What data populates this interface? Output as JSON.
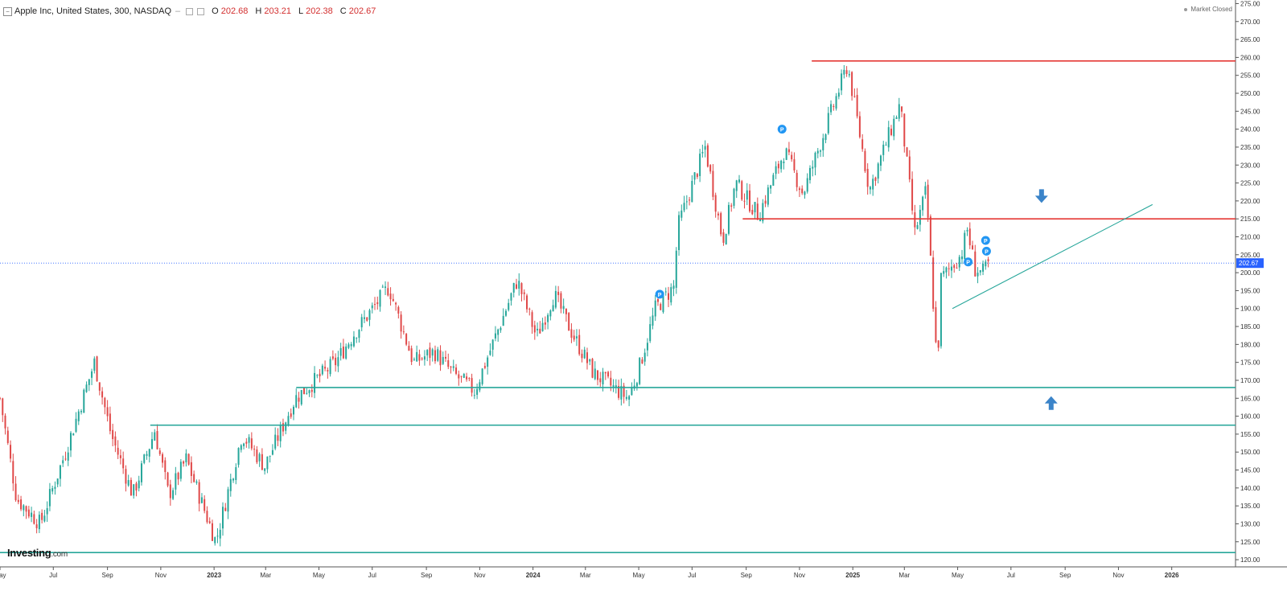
{
  "header": {
    "symbol": "Apple Inc, United States, 300, NASDAQ",
    "o_label": "O",
    "o_value": "202.68",
    "h_label": "H",
    "h_value": "203.21",
    "l_label": "L",
    "l_value": "202.38",
    "c_label": "C",
    "c_value": "202.67"
  },
  "status": {
    "market": "Market Closed"
  },
  "logo": {
    "text": "Investing",
    "suffix": ".com"
  },
  "colors": {
    "up": "#26a69a",
    "down": "#e04848",
    "resistance": "#e53935",
    "support": "#26a69a",
    "trendline": "#26a69a",
    "arrow": "#3b84c9",
    "marker": "#2196f3",
    "price_badge": "#2962ff",
    "grid": "#e6e6e6"
  },
  "chart_data": {
    "type": "candlestick",
    "ylim": [
      118,
      276
    ],
    "y_ticks": [
      "275.00",
      "270.00",
      "265.00",
      "260.00",
      "255.00",
      "250.00",
      "245.00",
      "240.00",
      "235.00",
      "230.00",
      "225.00",
      "220.00",
      "215.00",
      "210.00",
      "205.00",
      "200.00",
      "195.00",
      "190.00",
      "185.00",
      "180.00",
      "175.00",
      "170.00",
      "165.00",
      "160.00",
      "155.00",
      "150.00",
      "145.00",
      "140.00",
      "135.00",
      "130.00",
      "125.00",
      "120.00"
    ],
    "x_start": "2022-05-01",
    "x_end": "2026-03-15",
    "x_ticks": [
      {
        "date": "2022-05-01",
        "label": "May"
      },
      {
        "date": "2022-07-01",
        "label": "Jul"
      },
      {
        "date": "2022-09-01",
        "label": "Sep"
      },
      {
        "date": "2022-11-01",
        "label": "Nov"
      },
      {
        "date": "2023-01-01",
        "label": "2023"
      },
      {
        "date": "2023-03-01",
        "label": "Mar"
      },
      {
        "date": "2023-05-01",
        "label": "May"
      },
      {
        "date": "2023-07-01",
        "label": "Jul"
      },
      {
        "date": "2023-09-01",
        "label": "Sep"
      },
      {
        "date": "2023-11-01",
        "label": "Nov"
      },
      {
        "date": "2024-01-01",
        "label": "2024"
      },
      {
        "date": "2024-03-01",
        "label": "Mar"
      },
      {
        "date": "2024-05-01",
        "label": "May"
      },
      {
        "date": "2024-07-01",
        "label": "Jul"
      },
      {
        "date": "2024-09-01",
        "label": "Sep"
      },
      {
        "date": "2024-11-01",
        "label": "Nov"
      },
      {
        "date": "2025-01-01",
        "label": "2025"
      },
      {
        "date": "2025-03-01",
        "label": "Mar"
      },
      {
        "date": "2025-05-01",
        "label": "May"
      },
      {
        "date": "2025-07-01",
        "label": "Jul"
      },
      {
        "date": "2025-09-01",
        "label": "Sep"
      },
      {
        "date": "2025-11-01",
        "label": "Nov"
      },
      {
        "date": "2026-01-01",
        "label": "2026"
      }
    ],
    "series": [
      {
        "date": "2022-05-01",
        "close": 165
      },
      {
        "date": "2022-05-20",
        "close": 137
      },
      {
        "date": "2022-06-16",
        "close": 130
      },
      {
        "date": "2022-07-15",
        "close": 150
      },
      {
        "date": "2022-08-17",
        "close": 175
      },
      {
        "date": "2022-09-05",
        "close": 155
      },
      {
        "date": "2022-09-30",
        "close": 138
      },
      {
        "date": "2022-10-25",
        "close": 156
      },
      {
        "date": "2022-11-10",
        "close": 138
      },
      {
        "date": "2022-11-30",
        "close": 148
      },
      {
        "date": "2023-01-03",
        "close": 125
      },
      {
        "date": "2023-02-02",
        "close": 155
      },
      {
        "date": "2023-02-28",
        "close": 146
      },
      {
        "date": "2023-04-04",
        "close": 165
      },
      {
        "date": "2023-05-20",
        "close": 175
      },
      {
        "date": "2023-06-10",
        "close": 183
      },
      {
        "date": "2023-07-20",
        "close": 196
      },
      {
        "date": "2023-08-17",
        "close": 175
      },
      {
        "date": "2023-09-10",
        "close": 178
      },
      {
        "date": "2023-10-01",
        "close": 172
      },
      {
        "date": "2023-10-26",
        "close": 167
      },
      {
        "date": "2023-12-14",
        "close": 198
      },
      {
        "date": "2024-01-05",
        "close": 182
      },
      {
        "date": "2024-01-25",
        "close": 194
      },
      {
        "date": "2024-02-15",
        "close": 183
      },
      {
        "date": "2024-03-10",
        "close": 172
      },
      {
        "date": "2024-04-19",
        "close": 165
      },
      {
        "date": "2024-05-01",
        "close": 173
      },
      {
        "date": "2024-05-20",
        "close": 190
      },
      {
        "date": "2024-06-10",
        "close": 196
      },
      {
        "date": "2024-06-15",
        "close": 213
      },
      {
        "date": "2024-07-16",
        "close": 235
      },
      {
        "date": "2024-08-05",
        "close": 209
      },
      {
        "date": "2024-08-20",
        "close": 225
      },
      {
        "date": "2024-09-15",
        "close": 216
      },
      {
        "date": "2024-10-15",
        "close": 234
      },
      {
        "date": "2024-11-05",
        "close": 222
      },
      {
        "date": "2024-12-26",
        "close": 258
      },
      {
        "date": "2025-01-20",
        "close": 223
      },
      {
        "date": "2025-02-24",
        "close": 247
      },
      {
        "date": "2025-03-13",
        "close": 211
      },
      {
        "date": "2025-03-26",
        "close": 223
      },
      {
        "date": "2025-04-08",
        "close": 172
      },
      {
        "date": "2025-04-11",
        "close": 198
      },
      {
        "date": "2025-05-05",
        "close": 205
      },
      {
        "date": "2025-05-12",
        "close": 212
      },
      {
        "date": "2025-05-21",
        "close": 201
      },
      {
        "date": "2025-05-30",
        "close": 200
      },
      {
        "date": "2025-06-06",
        "close": 202.67
      }
    ],
    "last_price": "202.67",
    "levels": [
      {
        "kind": "resistance",
        "price": 259,
        "from": "2024-11-15"
      },
      {
        "kind": "resistance",
        "price": 215,
        "from": "2024-08-28"
      },
      {
        "kind": "support",
        "price": 168,
        "from": "2023-04-05"
      },
      {
        "kind": "support",
        "price": 157.5,
        "from": "2022-10-20"
      },
      {
        "kind": "support",
        "price": 122,
        "from": "2022-05-01"
      }
    ],
    "trendline": {
      "from": {
        "date": "2025-04-25",
        "price": 190
      },
      "to": {
        "date": "2025-12-10",
        "price": 219
      }
    },
    "arrows": [
      {
        "direction": "down",
        "date": "2025-08-05",
        "price": 221
      },
      {
        "direction": "up",
        "date": "2025-08-16",
        "price": 164
      }
    ],
    "markers": [
      {
        "label": "P",
        "date": "2024-05-25",
        "price": 194
      },
      {
        "label": "P",
        "date": "2024-10-12",
        "price": 240
      },
      {
        "label": "P",
        "date": "2025-05-13",
        "price": 203
      },
      {
        "label": "P",
        "date": "2025-06-02",
        "price": 209
      },
      {
        "label": "P",
        "date": "2025-06-03",
        "price": 206
      }
    ]
  }
}
